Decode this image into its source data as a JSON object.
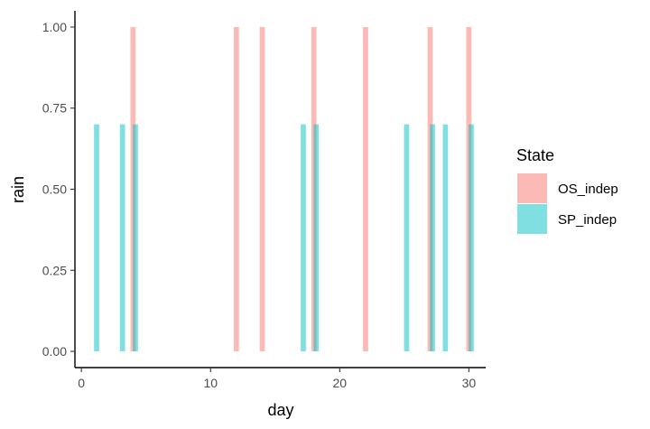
{
  "chart_data": {
    "type": "bar",
    "xlabel": "day",
    "ylabel": "rain",
    "xlim": [
      -0.5,
      31.3
    ],
    "ylim": [
      -0.05,
      1.05
    ],
    "x_ticks": [
      0,
      10,
      20,
      30
    ],
    "x_tick_labels": [
      "0",
      "10",
      "20",
      "30"
    ],
    "y_ticks": [
      0,
      0.25,
      0.5,
      0.75,
      1
    ],
    "y_tick_labels": [
      "0.00",
      "0.25",
      "0.50",
      "0.75",
      "1.00"
    ],
    "grid": false,
    "legend": {
      "title": "State",
      "placement": "right"
    },
    "series": [
      {
        "name": "OS_indep",
        "color": "#F8766D",
        "opacity": 0.5,
        "x": [
          4,
          12,
          14,
          18,
          22,
          27,
          30
        ],
        "values": [
          1,
          1,
          1,
          1,
          1,
          1,
          1
        ]
      },
      {
        "name": "SP_indep",
        "color": "#00BFC4",
        "opacity": 0.5,
        "x": [
          1,
          3,
          4,
          17,
          18,
          25,
          27,
          28,
          30
        ],
        "values": [
          0.7,
          0.7,
          0.7,
          0.7,
          0.7,
          0.7,
          0.7,
          0.7,
          0.7
        ]
      }
    ]
  }
}
